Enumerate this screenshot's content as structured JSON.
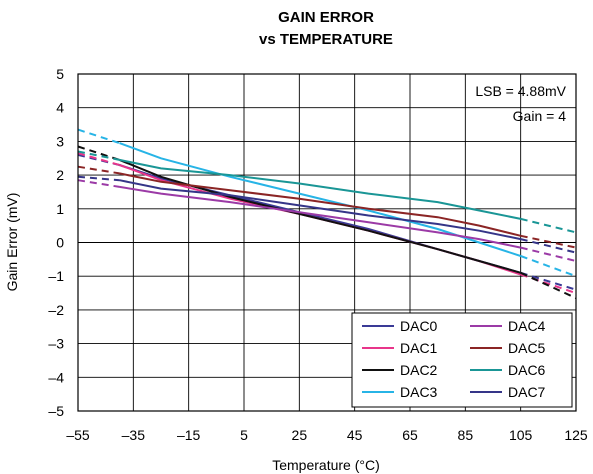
{
  "chart_data": {
    "type": "line",
    "title_line1": "GAIN ERROR",
    "title_line2": "vs TEMPERATURE",
    "xlabel": "Temperature (°C)",
    "ylabel": "Gain Error (mV)",
    "xlim": [
      -55,
      125
    ],
    "ylim": [
      -5,
      5
    ],
    "x_ticks": [
      -55,
      -35,
      -15,
      5,
      25,
      45,
      65,
      85,
      105,
      125
    ],
    "x_tick_labels": [
      "–55",
      "–35",
      "–15",
      "5",
      "25",
      "45",
      "65",
      "85",
      "105",
      "125"
    ],
    "y_ticks": [
      5,
      4,
      3,
      2,
      1,
      0,
      -1,
      -2,
      -3,
      -4,
      -5
    ],
    "y_tick_labels": [
      "5",
      "4",
      "3",
      "2",
      "1",
      "0",
      "–1",
      "–2",
      "–3",
      "–4",
      "–5"
    ],
    "grid": true,
    "annotations": [
      "LSB = 4.88mV",
      "Gain = 4"
    ],
    "legend_placement": "bottom-right",
    "measured_range": [
      -40,
      105
    ],
    "series": [
      {
        "name": "DAC0",
        "color": "#3a3a96",
        "x": [
          -55,
          -40,
          -25,
          0,
          25,
          50,
          75,
          90,
          105,
          125
        ],
        "y": [
          2.6,
          2.3,
          1.9,
          1.4,
          0.9,
          0.4,
          -0.2,
          -0.55,
          -0.9,
          -1.4
        ]
      },
      {
        "name": "DAC1",
        "color": "#e8358a",
        "x": [
          -55,
          -40,
          -25,
          0,
          25,
          50,
          75,
          90,
          105,
          125
        ],
        "y": [
          2.65,
          2.3,
          1.85,
          1.3,
          0.85,
          0.35,
          -0.2,
          -0.55,
          -0.95,
          -1.5
        ]
      },
      {
        "name": "DAC2",
        "color": "#111111",
        "x": [
          -55,
          -40,
          -25,
          0,
          25,
          50,
          75,
          90,
          105,
          125
        ],
        "y": [
          2.85,
          2.45,
          1.95,
          1.35,
          0.85,
          0.35,
          -0.2,
          -0.55,
          -0.9,
          -1.65
        ]
      },
      {
        "name": "DAC3",
        "color": "#27b4e6",
        "x": [
          -55,
          -40,
          -25,
          0,
          25,
          50,
          75,
          90,
          105,
          125
        ],
        "y": [
          3.35,
          2.95,
          2.5,
          1.95,
          1.45,
          0.95,
          0.4,
          0.0,
          -0.4,
          -1.0
        ]
      },
      {
        "name": "DAC4",
        "color": "#9b3aa6",
        "x": [
          -55,
          -40,
          -25,
          0,
          25,
          50,
          75,
          90,
          105,
          125
        ],
        "y": [
          1.85,
          1.65,
          1.45,
          1.2,
          0.9,
          0.6,
          0.3,
          0.1,
          -0.15,
          -0.55
        ]
      },
      {
        "name": "DAC5",
        "color": "#8b2525",
        "x": [
          -55,
          -40,
          -25,
          0,
          25,
          50,
          75,
          90,
          105,
          125
        ],
        "y": [
          2.25,
          2.05,
          1.8,
          1.55,
          1.3,
          1.0,
          0.75,
          0.5,
          0.2,
          -0.15
        ]
      },
      {
        "name": "DAC6",
        "color": "#1a9696",
        "x": [
          -55,
          -40,
          -25,
          0,
          25,
          50,
          75,
          90,
          105,
          125
        ],
        "y": [
          2.7,
          2.45,
          2.2,
          2.0,
          1.75,
          1.45,
          1.2,
          0.95,
          0.7,
          0.3
        ]
      },
      {
        "name": "DAC7",
        "color": "#353588",
        "x": [
          -55,
          -40,
          -25,
          0,
          25,
          50,
          75,
          90,
          105,
          125
        ],
        "y": [
          1.95,
          1.85,
          1.6,
          1.4,
          1.1,
          0.8,
          0.55,
          0.35,
          0.1,
          -0.3
        ]
      }
    ]
  }
}
